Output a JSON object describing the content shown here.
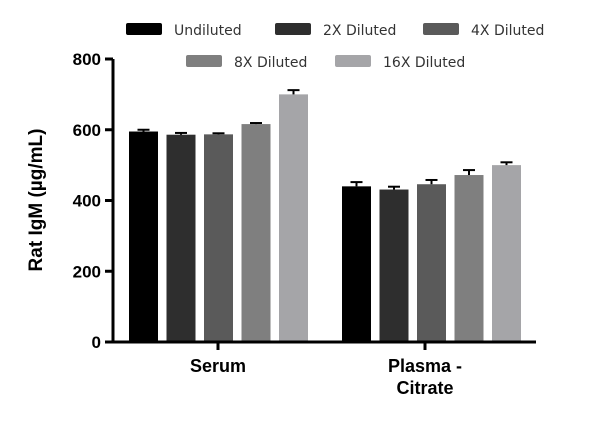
{
  "chart_data": {
    "type": "bar",
    "title": "",
    "xlabel": "",
    "ylabel": "Rat IgM (µg/mL)",
    "ylim": [
      0,
      800
    ],
    "yticks": [
      "0",
      "200",
      "400",
      "600",
      "800"
    ],
    "grid": false,
    "legend_position": "top",
    "categories": [
      {
        "lines": [
          "Serum"
        ]
      },
      {
        "lines": [
          "Plasma -",
          "Citrate"
        ]
      }
    ],
    "series": [
      {
        "name": "Undiluted",
        "color": "#000000",
        "values": [
          595,
          440
        ],
        "errors": [
          5,
          12
        ]
      },
      {
        "name": "2X Diluted",
        "color": "#2e2e2e",
        "values": [
          586,
          431
        ],
        "errors": [
          5,
          8
        ]
      },
      {
        "name": "4X Diluted",
        "color": "#5a5a5a",
        "values": [
          587,
          446
        ],
        "errors": [
          3,
          12
        ]
      },
      {
        "name": "8X Diluted",
        "color": "#7f7f7f",
        "values": [
          616,
          472
        ],
        "errors": [
          3,
          14
        ]
      },
      {
        "name": "16X Diluted",
        "color": "#a5a5a8",
        "values": [
          700,
          500
        ],
        "errors": [
          12,
          8
        ]
      }
    ]
  }
}
